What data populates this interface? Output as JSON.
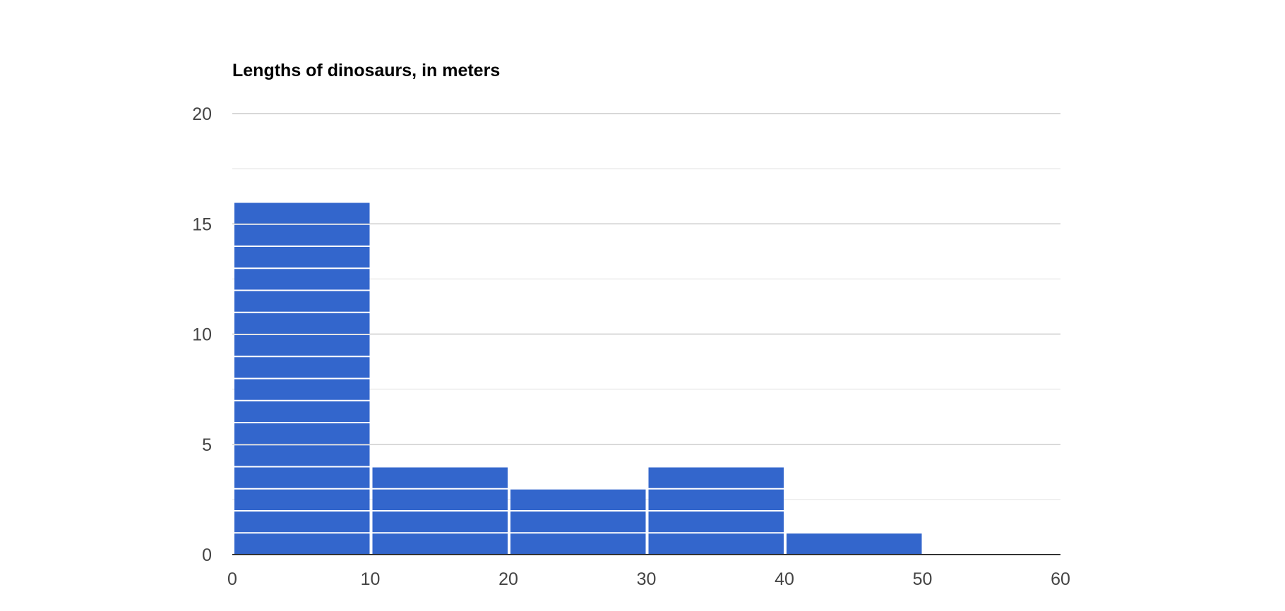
{
  "chart_data": {
    "type": "bar",
    "title": "Lengths of dinosaurs, in meters",
    "xlabel": "",
    "ylabel": "",
    "x_ticks": [
      0,
      10,
      20,
      30,
      40,
      50,
      60
    ],
    "y_ticks": [
      0,
      5,
      10,
      15,
      20
    ],
    "xlim": [
      0,
      60
    ],
    "ylim": [
      0,
      20
    ],
    "grid": true,
    "legend": "none",
    "bins": [
      {
        "start": 0,
        "end": 10,
        "count": 16
      },
      {
        "start": 10,
        "end": 20,
        "count": 4
      },
      {
        "start": 20,
        "end": 30,
        "count": 3
      },
      {
        "start": 30,
        "end": 40,
        "count": 4
      },
      {
        "start": 40,
        "end": 50,
        "count": 1
      },
      {
        "start": 50,
        "end": 60,
        "count": 0
      }
    ],
    "bar_color": "#3366cc"
  }
}
